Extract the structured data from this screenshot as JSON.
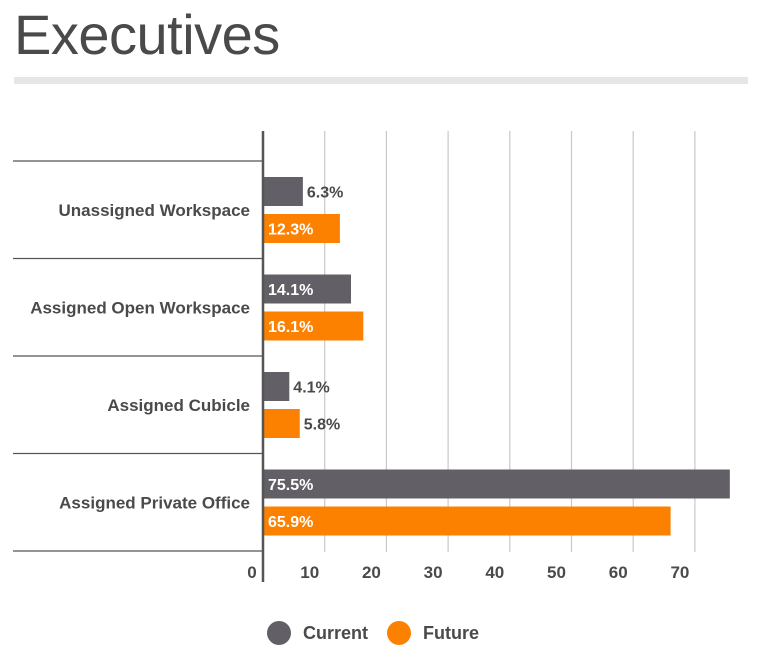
{
  "colors": {
    "current": "#625f66",
    "future": "#fd8100"
  },
  "legend": {
    "current": "Current",
    "future": "Future"
  },
  "chart_data": {
    "type": "bar",
    "orientation": "horizontal",
    "title": "Executives",
    "categories": [
      "Unassigned Workspace",
      "Assigned Open Workspace",
      "Assigned Cubicle",
      "Assigned Private Office"
    ],
    "series": [
      {
        "name": "Current",
        "values": [
          6.3,
          14.1,
          4.1,
          75.5
        ],
        "labels": [
          "6.3%",
          "14.1%",
          "4.1%",
          "75.5%"
        ]
      },
      {
        "name": "Future",
        "values": [
          12.3,
          16.1,
          5.8,
          65.9
        ],
        "labels": [
          "12.3%",
          "16.1%",
          "5.8%",
          "65.9%"
        ]
      }
    ],
    "xticks": [
      0,
      10,
      20,
      30,
      40,
      50,
      60,
      70
    ],
    "xlim": [
      0,
      79
    ],
    "grid": true,
    "legend_position": "bottom"
  }
}
